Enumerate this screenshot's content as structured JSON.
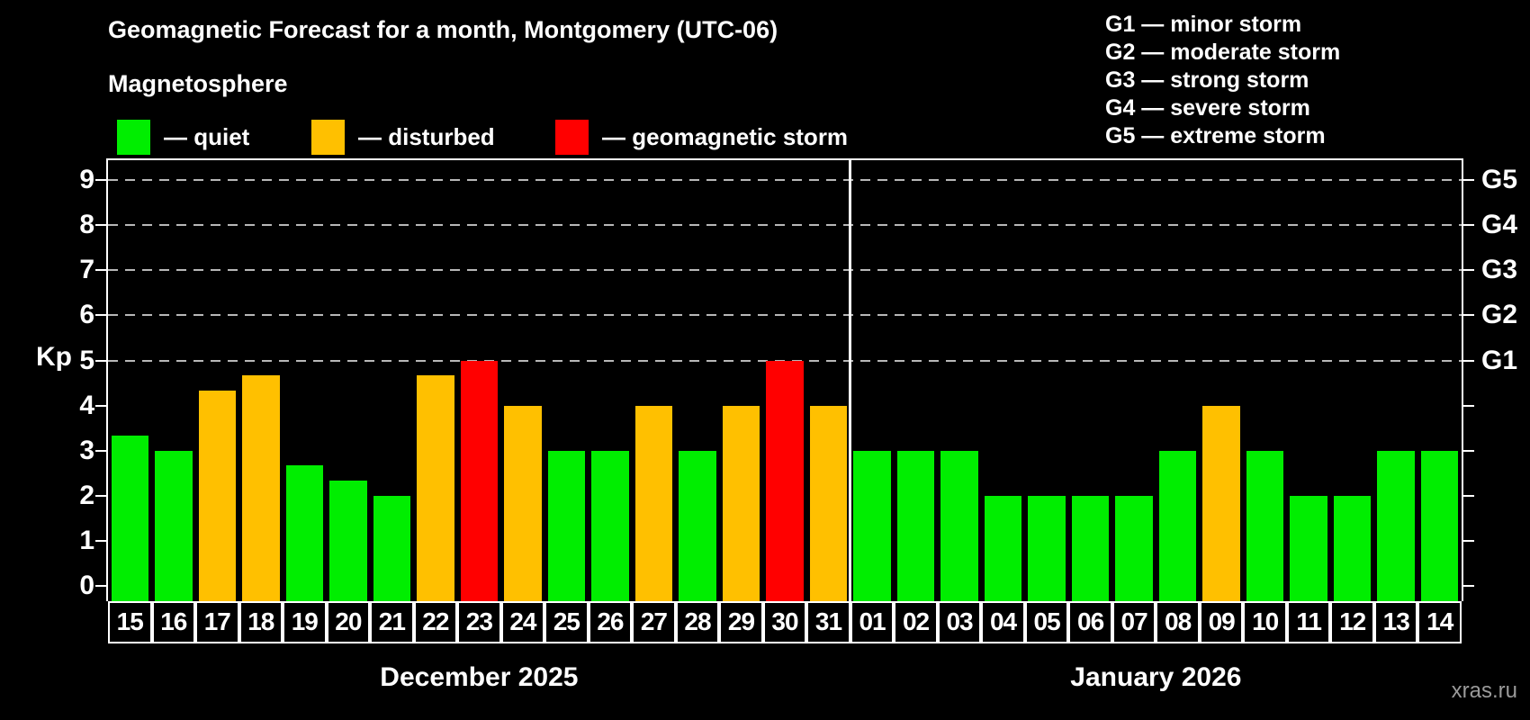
{
  "title": "Geomagnetic Forecast for a month, Montgomery (UTC-06)",
  "subtitle": "Magnetosphere",
  "legend": {
    "items": [
      {
        "key": "quiet",
        "label": "— quiet",
        "color": "#00ee00"
      },
      {
        "key": "disturbed",
        "label": "— disturbed",
        "color": "#ffc000"
      },
      {
        "key": "storm",
        "label": "— geomagnetic storm",
        "color": "#ff0000"
      }
    ]
  },
  "g_legend": [
    "G1 — minor storm",
    "G2 — moderate storm",
    "G3 — strong storm",
    "G4 — severe storm",
    "G5 — extreme storm"
  ],
  "y_axis": {
    "label": "Kp"
  },
  "watermark": "xras.ru",
  "chart_data": {
    "type": "bar",
    "title": "Geomagnetic Forecast for a month, Montgomery (UTC-06)",
    "ylabel": "Kp",
    "ylim": [
      0,
      9
    ],
    "grid": "dashed horizontal at G-levels",
    "legend_position": "top-left",
    "x": [
      "15",
      "16",
      "17",
      "18",
      "19",
      "20",
      "21",
      "22",
      "23",
      "24",
      "25",
      "26",
      "27",
      "28",
      "29",
      "30",
      "31",
      "01",
      "02",
      "03",
      "04",
      "05",
      "06",
      "07",
      "08",
      "09",
      "10",
      "11",
      "12",
      "13",
      "14"
    ],
    "values": [
      3.33,
      3,
      4.33,
      4.67,
      2.67,
      2.33,
      2,
      4.67,
      5,
      4,
      3,
      3,
      4,
      3,
      4,
      5,
      4,
      3,
      3,
      3,
      2,
      2,
      2,
      2,
      3,
      4,
      3,
      2,
      2,
      3,
      3
    ],
    "statuses": [
      "quiet",
      "quiet",
      "disturbed",
      "disturbed",
      "quiet",
      "quiet",
      "quiet",
      "disturbed",
      "storm",
      "disturbed",
      "quiet",
      "quiet",
      "disturbed",
      "quiet",
      "disturbed",
      "storm",
      "disturbed",
      "quiet",
      "quiet",
      "quiet",
      "quiet",
      "quiet",
      "quiet",
      "quiet",
      "quiet",
      "disturbed",
      "quiet",
      "quiet",
      "quiet",
      "quiet",
      "quiet"
    ],
    "status_colors": {
      "quiet": "#00ee00",
      "disturbed": "#ffc000",
      "storm": "#ff0000"
    },
    "y_ticks": [
      0,
      1,
      2,
      3,
      4,
      5,
      6,
      7,
      8,
      9
    ],
    "gridlines_at_kp": [
      5,
      6,
      7,
      8,
      9
    ],
    "right_labels": [
      {
        "kp": 5,
        "text": "G1"
      },
      {
        "kp": 6,
        "text": "G2"
      },
      {
        "kp": 7,
        "text": "G3"
      },
      {
        "kp": 8,
        "text": "G4"
      },
      {
        "kp": 9,
        "text": "G5"
      }
    ],
    "months": [
      {
        "label": "December 2025",
        "span_days": 17
      },
      {
        "label": "January 2026",
        "span_days": 14
      }
    ]
  }
}
